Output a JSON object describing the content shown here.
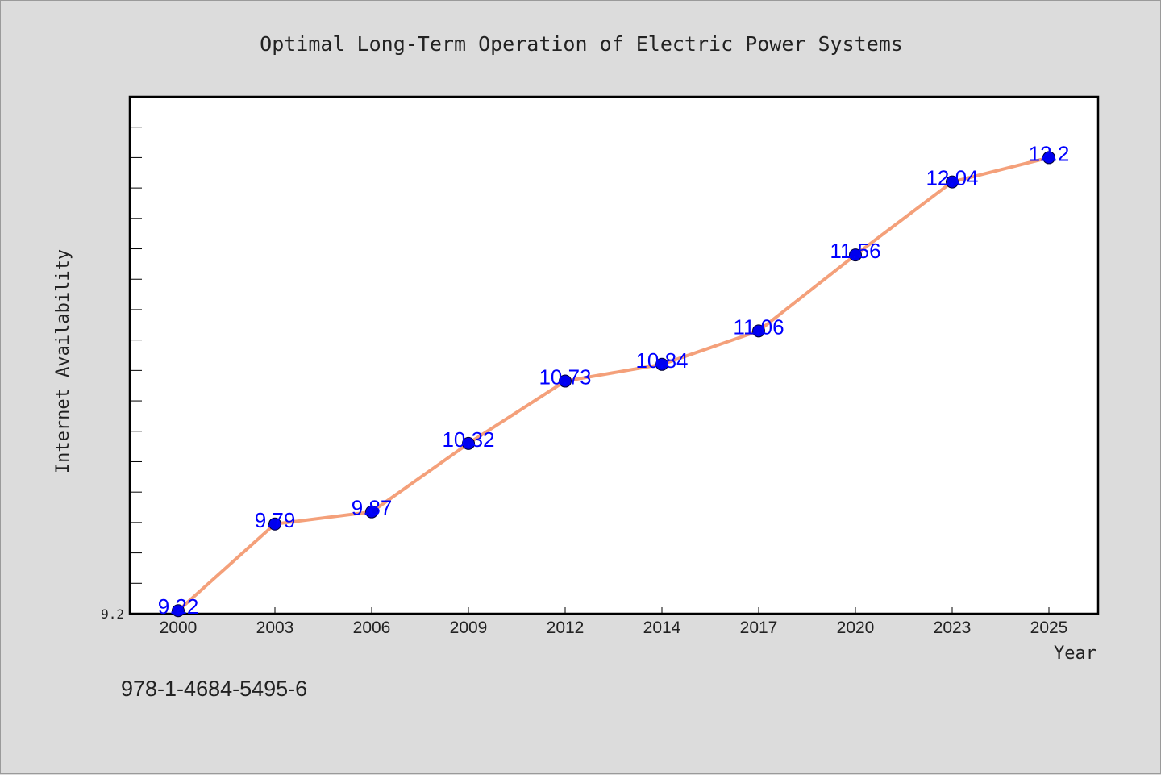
{
  "chart_data": {
    "type": "line",
    "title": "Optimal Long-Term Operation of Electric Power Systems",
    "xlabel": "Year",
    "ylabel": "Internet Availability",
    "categories": [
      "2000",
      "2003",
      "2006",
      "2009",
      "2012",
      "2014",
      "2017",
      "2020",
      "2023",
      "2025"
    ],
    "series": [
      {
        "values": [
          9.22,
          9.79,
          9.87,
          10.32,
          10.73,
          10.84,
          11.06,
          11.56,
          12.04,
          12.2
        ],
        "labels": [
          "9.22",
          "9.79",
          "9.87",
          "10.32",
          "10.73",
          "10.84",
          "11.06",
          "11.56",
          "12.04",
          "12.2"
        ],
        "line_color": "#f4a07a",
        "marker_color": "#0000ee",
        "label_color": "#0000ff"
      }
    ],
    "ylim": [
      9.2,
      12.6
    ],
    "y_tick_labels": [
      "9.2"
    ],
    "grid": false,
    "legend": "none"
  },
  "footer": {
    "isbn": "978-1-4684-5495-6"
  },
  "colors": {
    "background": "#dcdcdc",
    "plot_background": "#ffffff",
    "axis": "#000000",
    "text": "#222222"
  }
}
